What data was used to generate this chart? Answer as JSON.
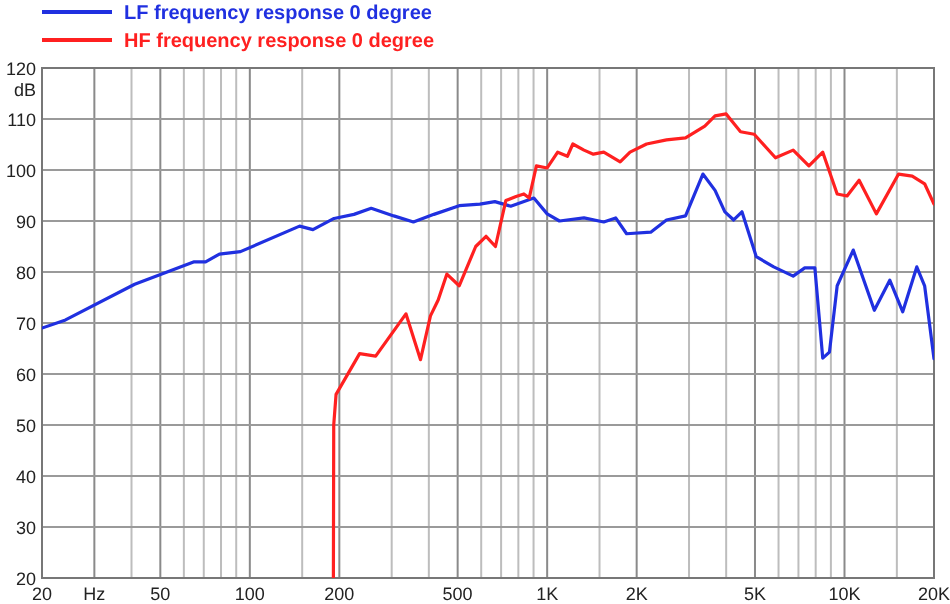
{
  "chart_data": {
    "type": "line",
    "ylabel": "dB",
    "log": "x",
    "grid": true,
    "legend": "top left",
    "line_style": "solid",
    "marker": "none",
    "xlim": [
      20,
      20000
    ],
    "ylim": [
      20,
      120
    ],
    "xticks": [
      20,
      {
        "value": 30,
        "label": "Hz"
      },
      {
        "value": 40,
        "label": null
      },
      50,
      {
        "value": 60,
        "label": null
      },
      {
        "value": 70,
        "label": null
      },
      {
        "value": 80,
        "label": null
      },
      {
        "value": 90,
        "label": null
      },
      100,
      {
        "value": 150,
        "label": null
      },
      200,
      {
        "value": 300,
        "label": null
      },
      {
        "value": 400,
        "label": null
      },
      500,
      {
        "value": 600,
        "label": null
      },
      {
        "value": 700,
        "label": null
      },
      {
        "value": 800,
        "label": null
      },
      {
        "value": 900,
        "label": null
      },
      {
        "value": 1000,
        "label": "1K"
      },
      {
        "value": 1500,
        "label": null
      },
      {
        "value": 2000,
        "label": "2K"
      },
      {
        "value": 3000,
        "label": null
      },
      {
        "value": 4000,
        "label": null
      },
      {
        "value": 5000,
        "label": "5K"
      },
      {
        "value": 6000,
        "label": null
      },
      {
        "value": 7000,
        "label": null
      },
      {
        "value": 8000,
        "label": null
      },
      {
        "value": 9000,
        "label": null
      },
      {
        "value": 10000,
        "label": "10K"
      },
      {
        "value": 15000,
        "label": null
      },
      {
        "value": 20000,
        "label": "20K"
      }
    ],
    "yticks": [
      20,
      30,
      40,
      50,
      60,
      70,
      80,
      90,
      100,
      110,
      120
    ],
    "series": [
      {
        "name": "LF frequency response 0 degree",
        "color": "#2030e0",
        "x": [
          20,
          24,
          41,
          65,
          71,
          79,
          93,
          147,
          163,
          192,
          224,
          256,
          305,
          355,
          416,
          506,
          594,
          667,
          754,
          902,
          1000,
          1100,
          1330,
          1550,
          1700,
          1850,
          2230,
          2520,
          2920,
          3340,
          3670,
          3960,
          4240,
          4520,
          5050,
          5780,
          6720,
          7350,
          7950,
          8450,
          8900,
          9450,
          10700,
          12600,
          14200,
          15700,
          17500,
          18600,
          20000
        ],
        "values": [
          69,
          70.6,
          77.6,
          82,
          82,
          83.5,
          84,
          89,
          88.3,
          90.5,
          91.3,
          92.5,
          91,
          89.8,
          91.3,
          93,
          93.3,
          93.8,
          92.9,
          94.5,
          91.4,
          90,
          90.6,
          89.8,
          90.6,
          87.5,
          87.8,
          90.2,
          91,
          99.2,
          96,
          91.8,
          90.2,
          91.8,
          83,
          81,
          79.2,
          80.8,
          80.8,
          63.1,
          64.3,
          77.3,
          84.3,
          72.5,
          78.4,
          72.2,
          81,
          77.3,
          63
        ]
      },
      {
        "name": "HF frequency response 0 degree",
        "color": "#ff2020",
        "x": [
          191,
          191.5,
          195,
          234,
          265,
          335,
          375,
          405,
          430,
          460,
          506,
          575,
          623,
          670,
          726,
          786,
          835,
          870,
          920,
          1000,
          1085,
          1170,
          1220,
          1330,
          1430,
          1550,
          1760,
          1900,
          2160,
          2520,
          2920,
          3390,
          3670,
          4000,
          4470,
          4970,
          5860,
          6720,
          7590,
          8450,
          9450,
          10200,
          11200,
          12800,
          15200,
          16900,
          18600,
          20000
        ],
        "values": [
          20,
          50,
          56,
          64,
          63.5,
          71.8,
          62.8,
          71.4,
          74.5,
          79.6,
          77.3,
          85,
          87,
          85,
          94,
          94.8,
          95.3,
          94.5,
          100.8,
          100.4,
          103.5,
          102.7,
          105.1,
          103.9,
          103.1,
          103.5,
          101.6,
          103.5,
          105.1,
          105.9,
          106.3,
          108.6,
          110.6,
          111,
          107.5,
          107,
          102.4,
          103.9,
          100.8,
          103.5,
          95.3,
          94.9,
          98,
          91.4,
          99.2,
          98.8,
          97.3,
          93.3
        ]
      }
    ]
  }
}
